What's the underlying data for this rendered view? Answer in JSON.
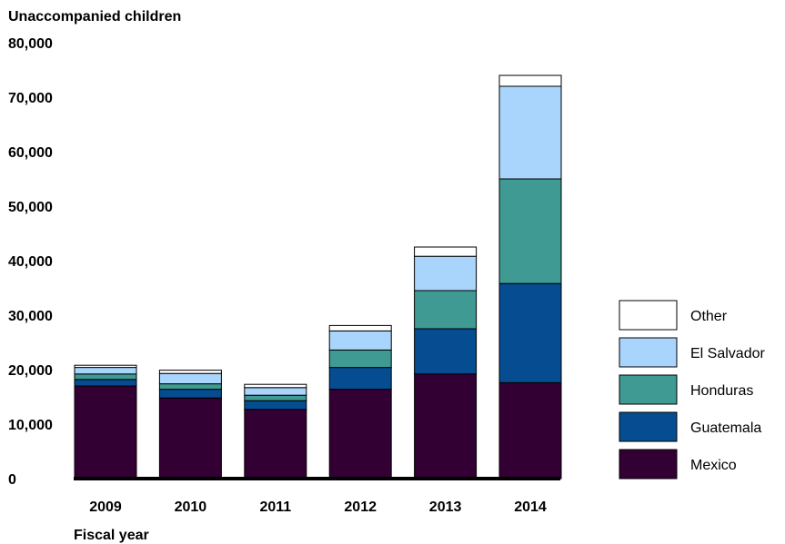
{
  "chart_data": {
    "type": "bar",
    "stacked": true,
    "ylabel": "Unaccompanied children",
    "xlabel": "Fiscal year",
    "ylim": [
      0,
      80000
    ],
    "yticks": [
      0,
      10000,
      20000,
      30000,
      40000,
      50000,
      60000,
      70000,
      80000
    ],
    "ytick_labels": [
      "0",
      "10,000",
      "20,000",
      "30,000",
      "40,000",
      "50,000",
      "60,000",
      "70,000",
      "80,000"
    ],
    "categories": [
      "2009",
      "2010",
      "2011",
      "2012",
      "2013",
      "2014"
    ],
    "legend_position": "right",
    "series": [
      {
        "name": "Mexico",
        "color": "#330033",
        "values": [
          17000,
          14800,
          12700,
          16400,
          19200,
          17600
        ]
      },
      {
        "name": "Guatemala",
        "color": "#054c91",
        "values": [
          1200,
          1600,
          1600,
          4000,
          8300,
          18200
        ]
      },
      {
        "name": "Honduras",
        "color": "#3e9a92",
        "values": [
          1000,
          1000,
          1000,
          3200,
          7000,
          19200
        ]
      },
      {
        "name": "El Salvador",
        "color": "#a9d4fb",
        "values": [
          1200,
          1900,
          1400,
          3500,
          6300,
          17000
        ]
      },
      {
        "name": "Other",
        "color": "#ffffff",
        "values": [
          400,
          600,
          600,
          1000,
          1700,
          2000
        ]
      }
    ]
  }
}
